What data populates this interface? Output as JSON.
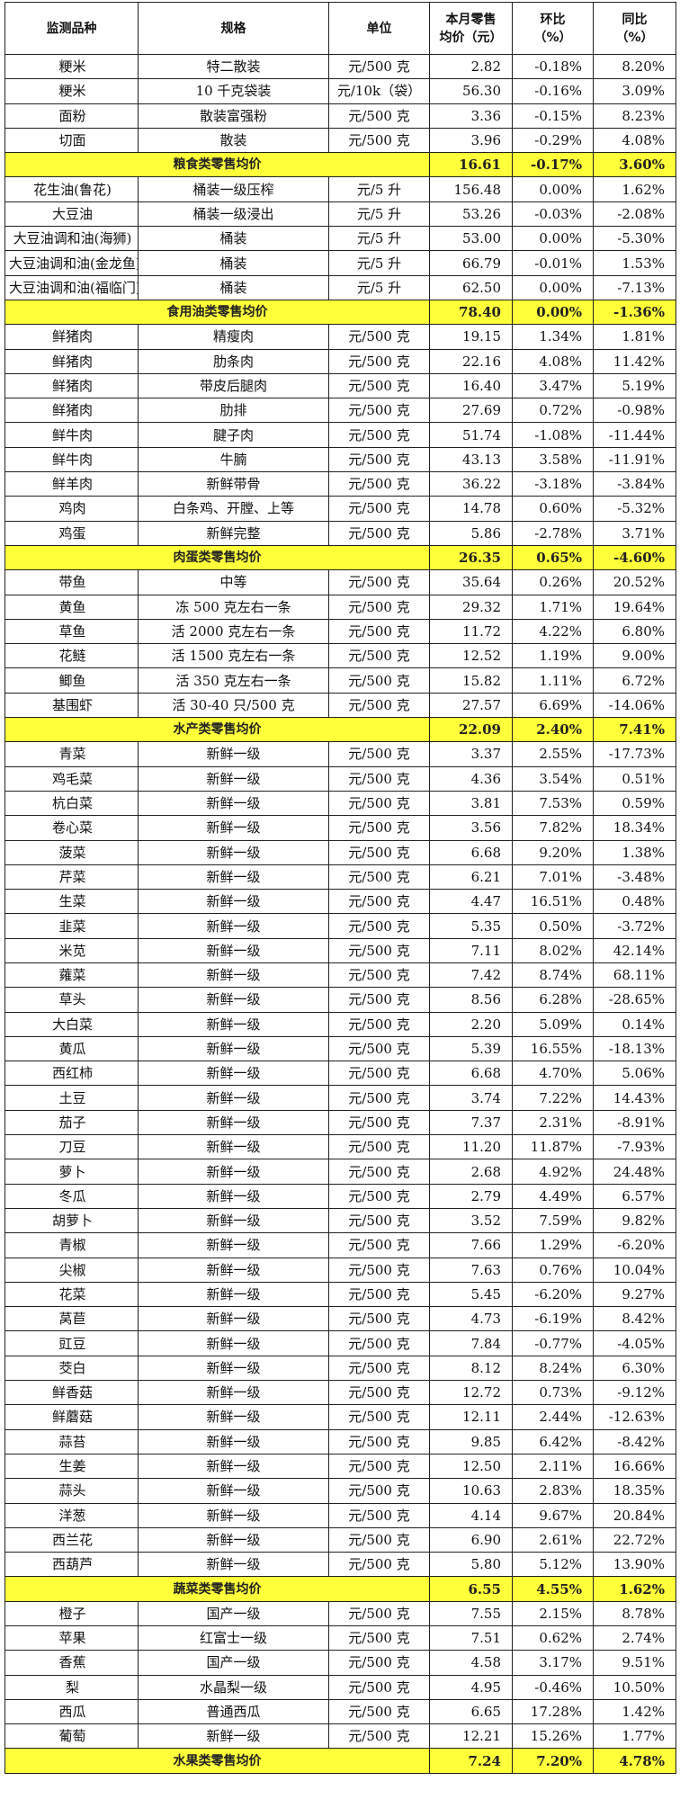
{
  "headers": [
    "监测品种",
    "规格",
    "单位",
    "本月零售\n均价（元）",
    "环比\n（%）",
    "同比\n（%）"
  ],
  "rows": [
    {
      "name": "粳米",
      "spec": "特二散装",
      "unit": "元/500 克",
      "price": "2.82",
      "mom": "-0.18%",
      "yoy": "8.20%"
    },
    {
      "name": "粳米",
      "spec": "10 千克袋装",
      "unit": "元/10k（袋）",
      "price": "56.30",
      "mom": "-0.16%",
      "yoy": "3.09%"
    },
    {
      "name": "面粉",
      "spec": "散装富强粉",
      "unit": "元/500 克",
      "price": "3.36",
      "mom": "-0.15%",
      "yoy": "8.23%"
    },
    {
      "name": "切面",
      "spec": "散装",
      "unit": "元/500 克",
      "price": "3.96",
      "mom": "-0.29%",
      "yoy": "4.08%"
    },
    {
      "avg": true,
      "label": "粮食类零售均价",
      "price": "16.61",
      "mom": "-0.17%",
      "yoy": "3.60%"
    },
    {
      "name": "花生油(鲁花)",
      "spec": "桶装一级压榨",
      "unit": "元/5 升",
      "price": "156.48",
      "mom": "0.00%",
      "yoy": "1.62%"
    },
    {
      "name": "大豆油",
      "spec": "桶装一级浸出",
      "unit": "元/5 升",
      "price": "53.26",
      "mom": "-0.03%",
      "yoy": "-2.08%"
    },
    {
      "name": "大豆油调和油(海狮)",
      "spec": "桶装",
      "unit": "元/5 升",
      "price": "53.00",
      "mom": "0.00%",
      "yoy": "-5.30%"
    },
    {
      "name": "大豆油调和油(金龙鱼)",
      "spec": "桶装",
      "unit": "元/5 升",
      "price": "66.79",
      "mom": "-0.01%",
      "yoy": "1.53%"
    },
    {
      "name": "大豆油调和油(福临门)",
      "spec": "桶装",
      "unit": "元/5 升",
      "price": "62.50",
      "mom": "0.00%",
      "yoy": "-7.13%"
    },
    {
      "avg": true,
      "label": "食用油类零售均价",
      "price": "78.40",
      "mom": "0.00%",
      "yoy": "-1.36%"
    },
    {
      "name": "鲜猪肉",
      "spec": "精瘦肉",
      "unit": "元/500 克",
      "price": "19.15",
      "mom": "1.34%",
      "yoy": "1.81%"
    },
    {
      "name": "鲜猪肉",
      "spec": "肋条肉",
      "unit": "元/500 克",
      "price": "22.16",
      "mom": "4.08%",
      "yoy": "11.42%"
    },
    {
      "name": "鲜猪肉",
      "spec": "带皮后腿肉",
      "unit": "元/500 克",
      "price": "16.40",
      "mom": "3.47%",
      "yoy": "5.19%"
    },
    {
      "name": "鲜猪肉",
      "spec": "肋排",
      "unit": "元/500 克",
      "price": "27.69",
      "mom": "0.72%",
      "yoy": "-0.98%"
    },
    {
      "name": "鲜牛肉",
      "spec": "腱子肉",
      "unit": "元/500 克",
      "price": "51.74",
      "mom": "-1.08%",
      "yoy": "-11.44%"
    },
    {
      "name": "鲜牛肉",
      "spec": "牛腩",
      "unit": "元/500 克",
      "price": "43.13",
      "mom": "3.58%",
      "yoy": "-11.91%"
    },
    {
      "name": "鲜羊肉",
      "spec": "新鲜带骨",
      "unit": "元/500 克",
      "price": "36.22",
      "mom": "-3.18%",
      "yoy": "-3.84%"
    },
    {
      "name": "鸡肉",
      "spec": "白条鸡、开膛、上等",
      "unit": "元/500 克",
      "price": "14.78",
      "mom": "0.60%",
      "yoy": "-5.32%"
    },
    {
      "name": "鸡蛋",
      "spec": "新鲜完整",
      "unit": "元/500 克",
      "price": "5.86",
      "mom": "-2.78%",
      "yoy": "3.71%"
    },
    {
      "avg": true,
      "label": "肉蛋类零售均价",
      "price": "26.35",
      "mom": "0.65%",
      "yoy": "-4.60%"
    },
    {
      "name": "带鱼",
      "spec": "中等",
      "unit": "元/500 克",
      "price": "35.64",
      "mom": "0.26%",
      "yoy": "20.52%"
    },
    {
      "name": "黄鱼",
      "spec": "冻 500 克左右一条",
      "unit": "元/500 克",
      "price": "29.32",
      "mom": "1.71%",
      "yoy": "19.64%"
    },
    {
      "name": "草鱼",
      "spec": "活 2000 克左右一条",
      "unit": "元/500 克",
      "price": "11.72",
      "mom": "4.22%",
      "yoy": "6.80%"
    },
    {
      "name": "花鲢",
      "spec": "活 1500 克左右一条",
      "unit": "元/500 克",
      "price": "12.52",
      "mom": "1.19%",
      "yoy": "9.00%"
    },
    {
      "name": "鲫鱼",
      "spec": "活 350 克左右一条",
      "unit": "元/500 克",
      "price": "15.82",
      "mom": "1.11%",
      "yoy": "6.72%"
    },
    {
      "name": "基围虾",
      "spec": "活 30-40 只/500 克",
      "unit": "元/500 克",
      "price": "27.57",
      "mom": "6.69%",
      "yoy": "-14.06%"
    },
    {
      "avg": true,
      "label": "水产类零售均价",
      "price": "22.09",
      "mom": "2.40%",
      "yoy": "7.41%"
    },
    {
      "name": "青菜",
      "spec": "新鲜一级",
      "unit": "元/500 克",
      "price": "3.37",
      "mom": "2.55%",
      "yoy": "-17.73%"
    },
    {
      "name": "鸡毛菜",
      "spec": "新鲜一级",
      "unit": "元/500 克",
      "price": "4.36",
      "mom": "3.54%",
      "yoy": "0.51%"
    },
    {
      "name": "杭白菜",
      "spec": "新鲜一级",
      "unit": "元/500 克",
      "price": "3.81",
      "mom": "7.53%",
      "yoy": "0.59%"
    },
    {
      "name": "卷心菜",
      "spec": "新鲜一级",
      "unit": "元/500 克",
      "price": "3.56",
      "mom": "7.82%",
      "yoy": "18.34%"
    },
    {
      "name": "菠菜",
      "spec": "新鲜一级",
      "unit": "元/500 克",
      "price": "6.68",
      "mom": "9.20%",
      "yoy": "1.38%"
    },
    {
      "name": "芹菜",
      "spec": "新鲜一级",
      "unit": "元/500 克",
      "price": "6.21",
      "mom": "7.01%",
      "yoy": "-3.48%"
    },
    {
      "name": "生菜",
      "spec": "新鲜一级",
      "unit": "元/500 克",
      "price": "4.47",
      "mom": "16.51%",
      "yoy": "0.48%"
    },
    {
      "name": "韭菜",
      "spec": "新鲜一级",
      "unit": "元/500 克",
      "price": "5.35",
      "mom": "0.50%",
      "yoy": "-3.72%"
    },
    {
      "name": "米苋",
      "spec": "新鲜一级",
      "unit": "元/500 克",
      "price": "7.11",
      "mom": "8.02%",
      "yoy": "42.14%"
    },
    {
      "name": "蕹菜",
      "spec": "新鲜一级",
      "unit": "元/500 克",
      "price": "7.42",
      "mom": "8.74%",
      "yoy": "68.11%"
    },
    {
      "name": "草头",
      "spec": "新鲜一级",
      "unit": "元/500 克",
      "price": "8.56",
      "mom": "6.28%",
      "yoy": "-28.65%"
    },
    {
      "name": "大白菜",
      "spec": "新鲜一级",
      "unit": "元/500 克",
      "price": "2.20",
      "mom": "5.09%",
      "yoy": "0.14%"
    },
    {
      "name": "黄瓜",
      "spec": "新鲜一级",
      "unit": "元/500 克",
      "price": "5.39",
      "mom": "16.55%",
      "yoy": "-18.13%"
    },
    {
      "name": "西红柿",
      "spec": "新鲜一级",
      "unit": "元/500 克",
      "price": "6.68",
      "mom": "4.70%",
      "yoy": "5.06%"
    },
    {
      "name": "土豆",
      "spec": "新鲜一级",
      "unit": "元/500 克",
      "price": "3.74",
      "mom": "7.22%",
      "yoy": "14.43%"
    },
    {
      "name": "茄子",
      "spec": "新鲜一级",
      "unit": "元/500 克",
      "price": "7.37",
      "mom": "2.31%",
      "yoy": "-8.91%"
    },
    {
      "name": "刀豆",
      "spec": "新鲜一级",
      "unit": "元/500 克",
      "price": "11.20",
      "mom": "11.87%",
      "yoy": "-7.93%"
    },
    {
      "name": "萝卜",
      "spec": "新鲜一级",
      "unit": "元/500 克",
      "price": "2.68",
      "mom": "4.92%",
      "yoy": "24.48%"
    },
    {
      "name": "冬瓜",
      "spec": "新鲜一级",
      "unit": "元/500 克",
      "price": "2.79",
      "mom": "4.49%",
      "yoy": "6.57%"
    },
    {
      "name": "胡萝卜",
      "spec": "新鲜一级",
      "unit": "元/500 克",
      "price": "3.52",
      "mom": "7.59%",
      "yoy": "9.82%"
    },
    {
      "name": "青椒",
      "spec": "新鲜一级",
      "unit": "元/500 克",
      "price": "7.66",
      "mom": "1.29%",
      "yoy": "-6.20%"
    },
    {
      "name": "尖椒",
      "spec": "新鲜一级",
      "unit": "元/500 克",
      "price": "7.63",
      "mom": "0.76%",
      "yoy": "10.04%"
    },
    {
      "name": "花菜",
      "spec": "新鲜一级",
      "unit": "元/500 克",
      "price": "5.45",
      "mom": "-6.20%",
      "yoy": "9.27%"
    },
    {
      "name": "莴苣",
      "spec": "新鲜一级",
      "unit": "元/500 克",
      "price": "4.73",
      "mom": "-6.19%",
      "yoy": "8.42%"
    },
    {
      "name": "豇豆",
      "spec": "新鲜一级",
      "unit": "元/500 克",
      "price": "7.84",
      "mom": "-0.77%",
      "yoy": "-4.05%"
    },
    {
      "name": "茭白",
      "spec": "新鲜一级",
      "unit": "元/500 克",
      "price": "8.12",
      "mom": "8.24%",
      "yoy": "6.30%"
    },
    {
      "name": "鲜香菇",
      "spec": "新鲜一级",
      "unit": "元/500 克",
      "price": "12.72",
      "mom": "0.73%",
      "yoy": "-9.12%"
    },
    {
      "name": "鲜蘑菇",
      "spec": "新鲜一级",
      "unit": "元/500 克",
      "price": "12.11",
      "mom": "2.44%",
      "yoy": "-12.63%"
    },
    {
      "name": "蒜苔",
      "spec": "新鲜一级",
      "unit": "元/500 克",
      "price": "9.85",
      "mom": "6.42%",
      "yoy": "-8.42%"
    },
    {
      "name": "生姜",
      "spec": "新鲜一级",
      "unit": "元/500 克",
      "price": "12.50",
      "mom": "2.11%",
      "yoy": "16.66%"
    },
    {
      "name": "蒜头",
      "spec": "新鲜一级",
      "unit": "元/500 克",
      "price": "10.63",
      "mom": "2.83%",
      "yoy": "18.35%"
    },
    {
      "name": "洋葱",
      "spec": "新鲜一级",
      "unit": "元/500 克",
      "price": "4.14",
      "mom": "9.67%",
      "yoy": "20.84%"
    },
    {
      "name": "西兰花",
      "spec": "新鲜一级",
      "unit": "元/500 克",
      "price": "6.90",
      "mom": "2.61%",
      "yoy": "22.72%"
    },
    {
      "name": "西葫芦",
      "spec": "新鲜一级",
      "unit": "元/500 克",
      "price": "5.80",
      "mom": "5.12%",
      "yoy": "13.90%"
    },
    {
      "avg": true,
      "label": "蔬菜类零售均价",
      "price": "6.55",
      "mom": "4.55%",
      "yoy": "1.62%"
    },
    {
      "name": "橙子",
      "spec": "国产一级",
      "unit": "元/500 克",
      "price": "7.55",
      "mom": "2.15%",
      "yoy": "8.78%"
    },
    {
      "name": "苹果",
      "spec": "红富士一级",
      "unit": "元/500 克",
      "price": "7.51",
      "mom": "0.62%",
      "yoy": "2.74%"
    },
    {
      "name": "香蕉",
      "spec": "国产一级",
      "unit": "元/500 克",
      "price": "4.58",
      "mom": "3.17%",
      "yoy": "9.51%"
    },
    {
      "name": "梨",
      "spec": "水晶梨一级",
      "unit": "元/500 克",
      "price": "4.95",
      "mom": "-0.46%",
      "yoy": "10.50%"
    },
    {
      "name": "西瓜",
      "spec": "普通西瓜",
      "unit": "元/500 克",
      "price": "6.65",
      "mom": "17.28%",
      "yoy": "1.42%"
    },
    {
      "name": "葡萄",
      "spec": "新鲜一级",
      "unit": "元/500 克",
      "price": "12.21",
      "mom": "15.26%",
      "yoy": "1.77%"
    },
    {
      "avg": true,
      "label": "水果类零售均价",
      "price": "7.24",
      "mom": "7.20%",
      "yoy": "4.78%"
    }
  ]
}
